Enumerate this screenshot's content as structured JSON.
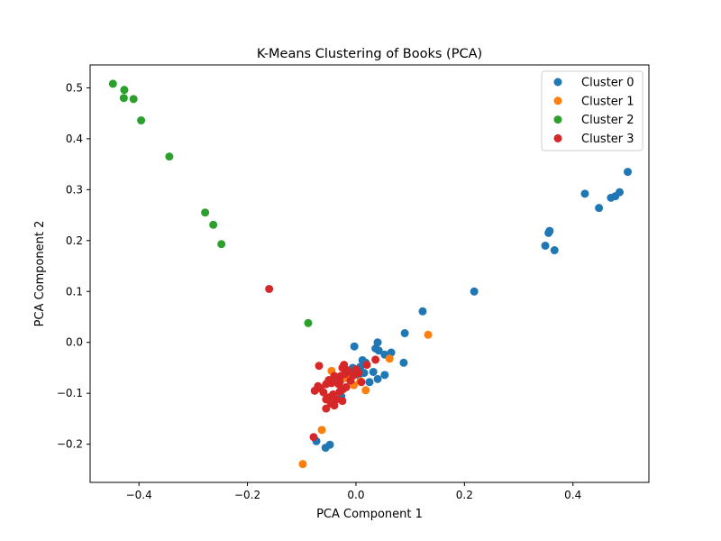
{
  "chart_data": {
    "type": "scatter",
    "title": "K-Means Clustering of Books (PCA)",
    "xlabel": "PCA Component 1",
    "ylabel": "PCA Component 2",
    "xlim": [
      -0.49,
      0.54
    ],
    "ylim": [
      -0.275,
      0.545
    ],
    "xticks": [
      -0.4,
      -0.2,
      0.0,
      0.2,
      0.4
    ],
    "xtick_labels": [
      "−0.4",
      "−0.2",
      "0.0",
      "0.2",
      "0.4"
    ],
    "yticks": [
      -0.2,
      -0.1,
      0.0,
      0.1,
      0.2,
      0.3,
      0.4,
      0.5
    ],
    "ytick_labels": [
      "−0.2",
      "−0.1",
      "0.0",
      "0.1",
      "0.2",
      "0.3",
      "0.4",
      "0.5"
    ],
    "grid": false,
    "legend_position": "top-right",
    "series": [
      {
        "name": "Cluster 0",
        "color": "#1f77b4",
        "points": [
          [
            0.501,
            0.335
          ],
          [
            0.486,
            0.295
          ],
          [
            0.478,
            0.287
          ],
          [
            0.47,
            0.284
          ],
          [
            0.448,
            0.264
          ],
          [
            0.422,
            0.292
          ],
          [
            0.357,
            0.219
          ],
          [
            0.355,
            0.215
          ],
          [
            0.349,
            0.19
          ],
          [
            0.366,
            0.181
          ],
          [
            0.218,
            0.1
          ],
          [
            0.123,
            0.061
          ],
          [
            0.09,
            0.018
          ],
          [
            0.088,
            -0.04
          ],
          [
            0.065,
            -0.02
          ],
          [
            0.053,
            -0.024
          ],
          [
            0.053,
            -0.064
          ],
          [
            0.04,
            0.0
          ],
          [
            0.036,
            -0.012
          ],
          [
            0.042,
            -0.016
          ],
          [
            0.032,
            -0.058
          ],
          [
            0.04,
            -0.072
          ],
          [
            0.025,
            -0.078
          ],
          [
            0.018,
            -0.04
          ],
          [
            0.012,
            -0.035
          ],
          [
            0.008,
            -0.048
          ],
          [
            0.015,
            -0.06
          ],
          [
            0.005,
            -0.064
          ],
          [
            -0.003,
            -0.008
          ],
          [
            -0.006,
            -0.05
          ],
          [
            -0.012,
            -0.06
          ],
          [
            -0.022,
            -0.07
          ],
          [
            -0.027,
            -0.106
          ],
          [
            -0.048,
            -0.201
          ],
          [
            -0.056,
            -0.207
          ],
          [
            -0.073,
            -0.194
          ]
        ]
      },
      {
        "name": "Cluster 1",
        "color": "#ff7f0e",
        "points": [
          [
            0.133,
            0.015
          ],
          [
            0.062,
            -0.032
          ],
          [
            0.018,
            -0.094
          ],
          [
            0.008,
            -0.076
          ],
          [
            -0.004,
            -0.084
          ],
          [
            -0.018,
            -0.07
          ],
          [
            -0.045,
            -0.056
          ],
          [
            -0.063,
            -0.172
          ],
          [
            -0.098,
            -0.239
          ]
        ]
      },
      {
        "name": "Cluster 2",
        "color": "#2ca02c",
        "points": [
          [
            -0.448,
            0.508
          ],
          [
            -0.427,
            0.496
          ],
          [
            -0.428,
            0.48
          ],
          [
            -0.41,
            0.478
          ],
          [
            -0.396,
            0.436
          ],
          [
            -0.344,
            0.365
          ],
          [
            -0.278,
            0.255
          ],
          [
            -0.263,
            0.231
          ],
          [
            -0.248,
            0.193
          ],
          [
            -0.088,
            0.038
          ]
        ]
      },
      {
        "name": "Cluster 3",
        "color": "#d62728",
        "points": [
          [
            -0.16,
            0.105
          ],
          [
            0.036,
            -0.034
          ],
          [
            0.02,
            -0.044
          ],
          [
            0.005,
            -0.06
          ],
          [
            0.01,
            -0.078
          ],
          [
            0.0,
            -0.053
          ],
          [
            -0.005,
            -0.065
          ],
          [
            -0.01,
            -0.075
          ],
          [
            -0.015,
            -0.055
          ],
          [
            -0.02,
            -0.062
          ],
          [
            -0.022,
            -0.044
          ],
          [
            -0.025,
            -0.05
          ],
          [
            -0.028,
            -0.066
          ],
          [
            -0.03,
            -0.078
          ],
          [
            -0.018,
            -0.088
          ],
          [
            -0.024,
            -0.092
          ],
          [
            -0.032,
            -0.082
          ],
          [
            -0.036,
            -0.072
          ],
          [
            -0.04,
            -0.066
          ],
          [
            -0.045,
            -0.08
          ],
          [
            -0.05,
            -0.074
          ],
          [
            -0.055,
            -0.082
          ],
          [
            -0.06,
            -0.098
          ],
          [
            -0.066,
            -0.09
          ],
          [
            -0.07,
            -0.086
          ],
          [
            -0.076,
            -0.095
          ],
          [
            -0.068,
            -0.046
          ],
          [
            -0.05,
            -0.108
          ],
          [
            -0.042,
            -0.102
          ],
          [
            -0.036,
            -0.112
          ],
          [
            -0.03,
            -0.097
          ],
          [
            -0.025,
            -0.115
          ],
          [
            -0.055,
            -0.112
          ],
          [
            -0.046,
            -0.12
          ],
          [
            -0.04,
            -0.124
          ],
          [
            -0.055,
            -0.13
          ],
          [
            -0.078,
            -0.186
          ]
        ]
      }
    ]
  }
}
